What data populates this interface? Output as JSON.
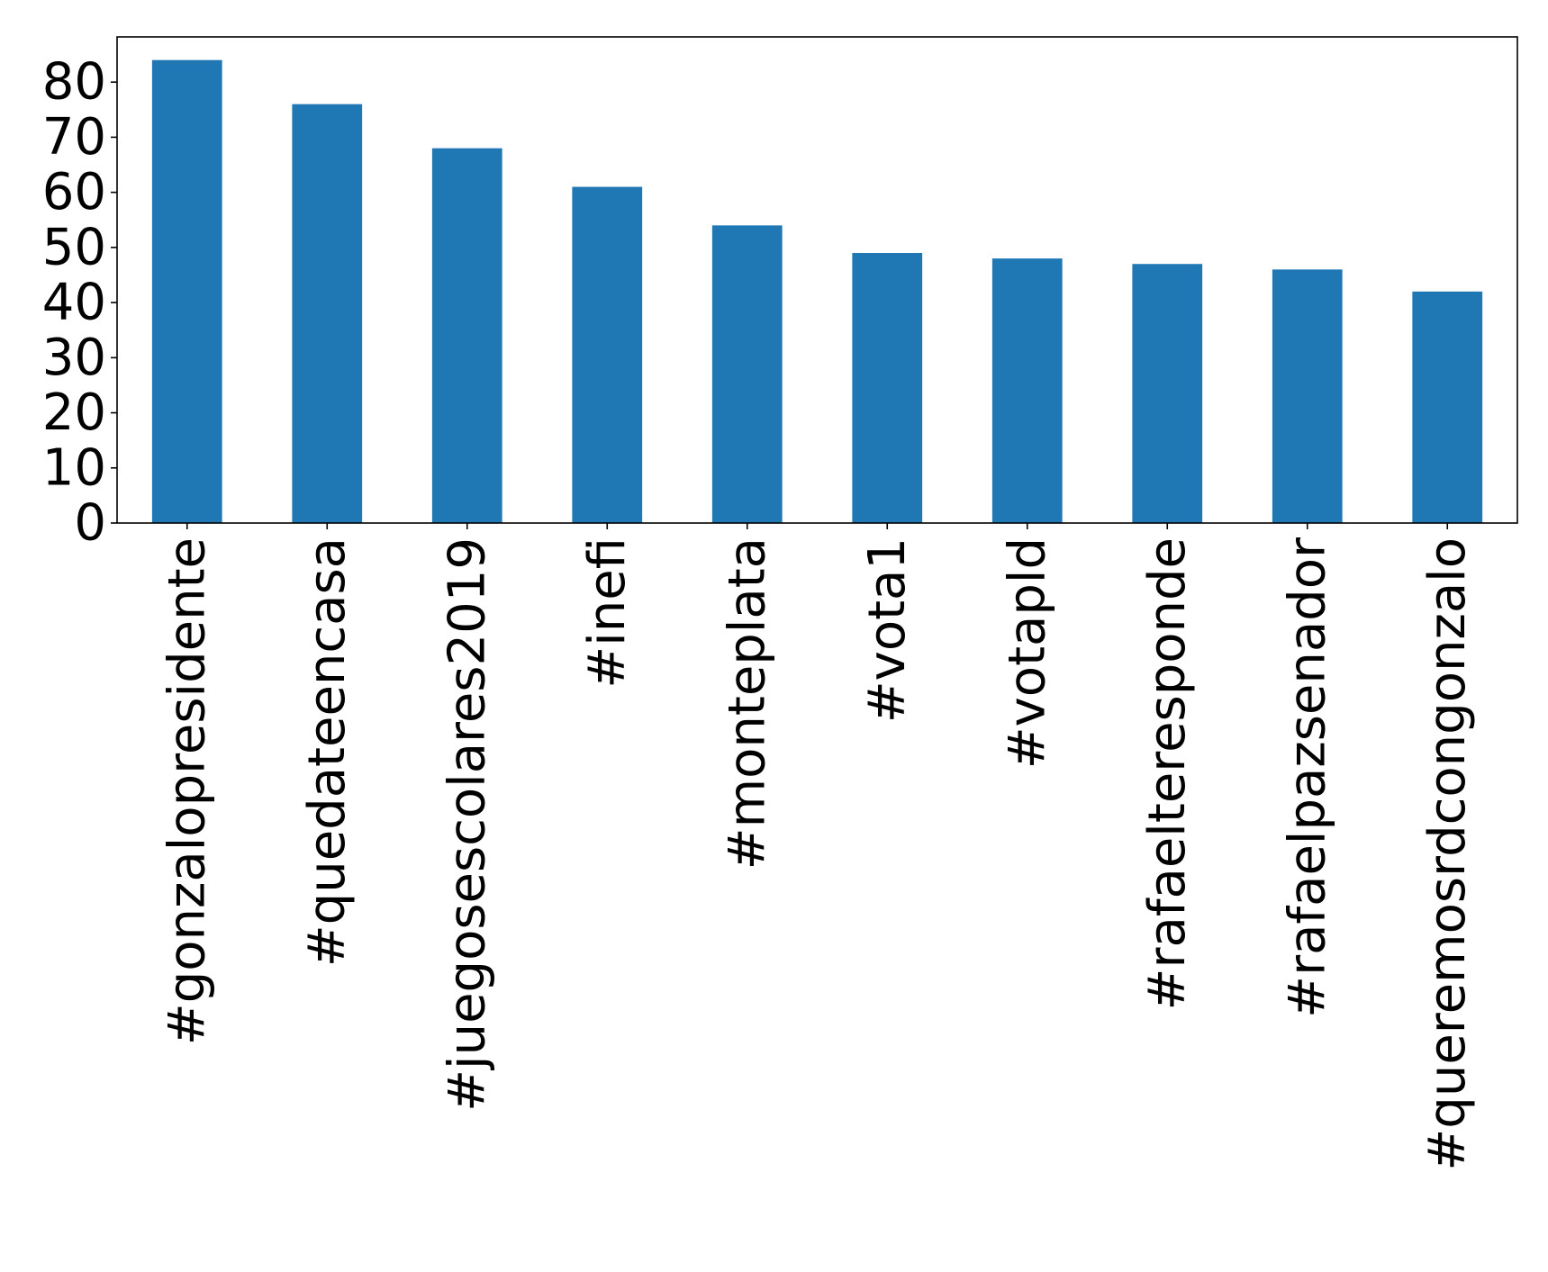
{
  "chart_data": {
    "type": "bar",
    "title": "",
    "xlabel": "",
    "ylabel": "",
    "categories": [
      "#gonzalopresidente",
      "#quedateencasa",
      "#juegosescolares2019",
      "#inefi",
      "#monteplata",
      "#vota1",
      "#votapld",
      "#rafaelteresponde",
      "#rafaelpazsenador",
      "#queremosrdcongonzalo"
    ],
    "values": [
      84,
      76,
      68,
      61,
      54,
      49,
      48,
      47,
      46,
      42
    ],
    "ylim": [
      0,
      88.2
    ],
    "yticks": [
      0,
      10,
      20,
      30,
      40,
      50,
      60,
      70,
      80
    ],
    "grid": false,
    "legend": "none",
    "bar_color": "#1f77b4"
  }
}
